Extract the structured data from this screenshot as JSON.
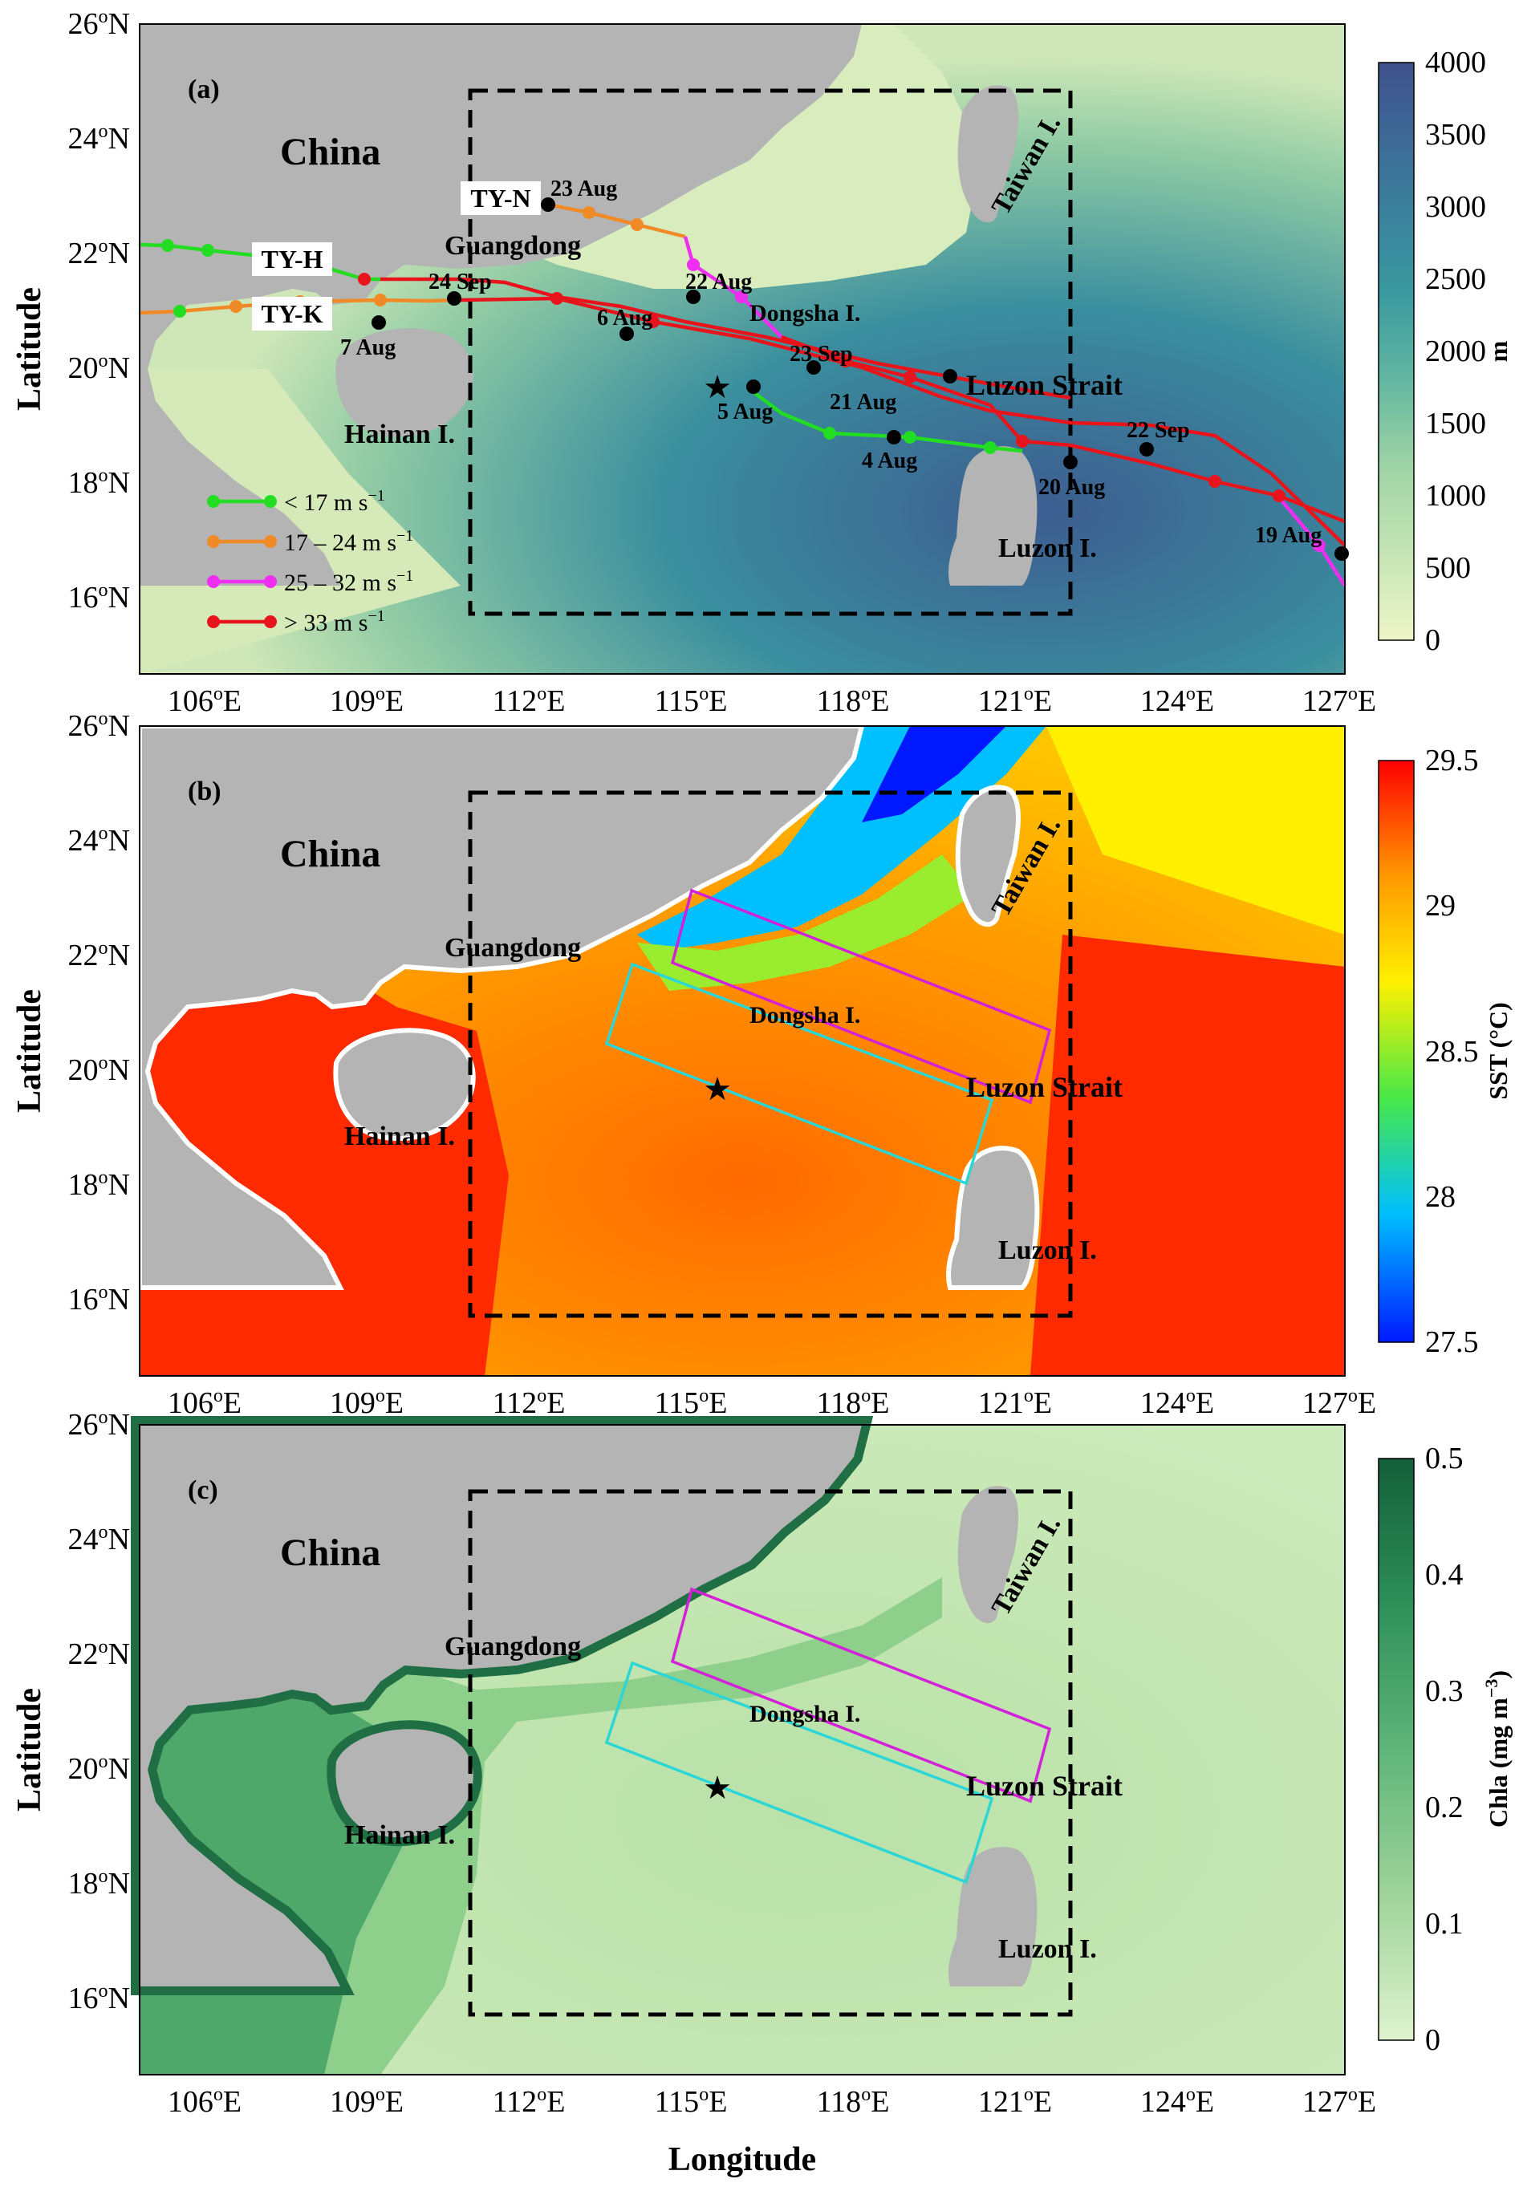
{
  "figure": {
    "panels": [
      {
        "id": "a",
        "label": "(a)",
        "colorbar": {
          "ticks": [
            "0",
            "500",
            "1000",
            "1500",
            "2000",
            "2500",
            "3000",
            "3500",
            "4000"
          ],
          "unit": "m",
          "colors": [
            "#f0f5c8",
            "#cde8b8",
            "#9fd3a6",
            "#63b7a0",
            "#3a9a9f",
            "#3b7f9c",
            "#3e6494",
            "#3f5188"
          ]
        },
        "place_labels": {
          "china": "China",
          "guangdong": "Guangdong",
          "hainan": "Hainan I.",
          "dongsha": "Dongsha I.",
          "luzon_strait": "Luzon Strait",
          "taiwan": "Taiwan I.",
          "luzon": "Luzon I."
        },
        "typhoon_labels": {
          "tyh": "TY-H",
          "tyk": "TY-K",
          "tyn": "TY-N"
        },
        "date_labels": [
          "23 Aug",
          "22 Aug",
          "24 Sep",
          "6 Aug",
          "7 Aug",
          "23 Sep",
          "5 Aug",
          "21 Aug",
          "4 Aug",
          "22 Sep",
          "20 Aug",
          "19 Aug"
        ],
        "legend": [
          "< 17 m s",
          "17 – 24 m s",
          "25 – 32 m s",
          "> 33 m s"
        ],
        "legend_superscript": "−1"
      },
      {
        "id": "b",
        "label": "(b)",
        "colorbar": {
          "ticks": [
            "27.5",
            "28",
            "28.5",
            "29",
            "29.5"
          ],
          "unit": "SST (°C)",
          "colors": [
            "#0018ff",
            "#00bfff",
            "#48e848",
            "#fff000",
            "#ff9a00",
            "#ff0000"
          ]
        },
        "place_labels": {
          "china": "China",
          "guangdong": "Guangdong",
          "hainan": "Hainan I.",
          "dongsha": "Dongsha I.",
          "luzon_strait": "Luzon Strait",
          "taiwan": "Taiwan I.",
          "luzon": "Luzon I."
        }
      },
      {
        "id": "c",
        "label": "(c)",
        "colorbar": {
          "ticks": [
            "0",
            "0.1",
            "0.2",
            "0.3",
            "0.4",
            "0.5"
          ],
          "unit": "Chla (mg m",
          "unit_superscript": "−3",
          "unit_close": ")",
          "colors": [
            "#dff3cf",
            "#9fd39a",
            "#5fb57a",
            "#2e8f58",
            "#135f3a"
          ]
        },
        "place_labels": {
          "china": "China",
          "guangdong": "Guangdong",
          "hainan": "Hainan I.",
          "dongsha": "Dongsha I.",
          "luzon_strait": "Luzon Strait",
          "taiwan": "Taiwan I.",
          "luzon": "Luzon I."
        }
      }
    ],
    "y_ticks": [
      {
        "deg": "26",
        "suffix": "N"
      },
      {
        "deg": "24",
        "suffix": "N"
      },
      {
        "deg": "22",
        "suffix": "N"
      },
      {
        "deg": "20",
        "suffix": "N"
      },
      {
        "deg": "18",
        "suffix": "N"
      },
      {
        "deg": "16",
        "suffix": "N"
      }
    ],
    "x_ticks": [
      {
        "deg": "106",
        "suffix": "E"
      },
      {
        "deg": "109",
        "suffix": "E"
      },
      {
        "deg": "112",
        "suffix": "E"
      },
      {
        "deg": "115",
        "suffix": "E"
      },
      {
        "deg": "118",
        "suffix": "E"
      },
      {
        "deg": "121",
        "suffix": "E"
      },
      {
        "deg": "124",
        "suffix": "E"
      },
      {
        "deg": "127",
        "suffix": "E"
      }
    ],
    "y_label": "Latitude",
    "x_label": "Longitude",
    "degree_symbol": "o",
    "track_colors": {
      "lt17": "#22dd22",
      "17_24": "#f08a26",
      "25_32": "#ee2ef0",
      "gt33": "#e8141c"
    }
  }
}
